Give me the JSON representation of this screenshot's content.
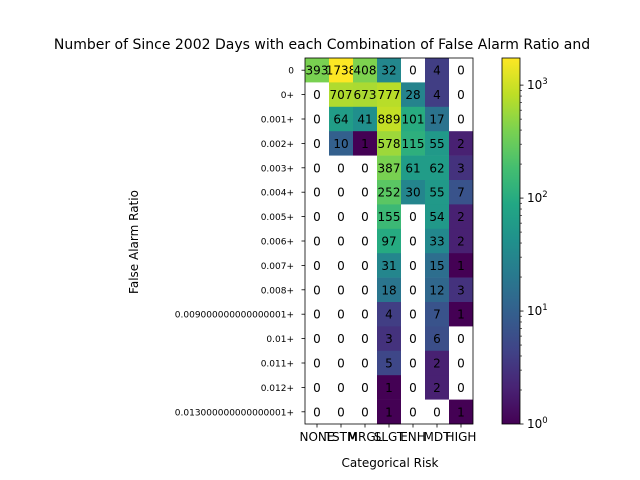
{
  "chart_data": {
    "type": "heatmap",
    "title": "Number of Since 2002 Days with each Combination of False Alarm Ratio and",
    "xlabel": "Categorical Risk",
    "ylabel": "False Alarm Ratio",
    "x_categories": [
      "NONE",
      "TSTM",
      "MRGL",
      "SLGT",
      "ENH",
      "MDT",
      "HIGH"
    ],
    "y_categories": [
      "0",
      "0+",
      "0.001+",
      "0.002+",
      "0.003+",
      "0.004+",
      "0.005+",
      "0.006+",
      "0.007+",
      "0.008+",
      "0.009000000000000001+",
      "0.01+",
      "0.011+",
      "0.012+",
      "0.013000000000000001+"
    ],
    "values": [
      [
        393,
        1738,
        408,
        32,
        0,
        4,
        0
      ],
      [
        0,
        707,
        673,
        777,
        28,
        4,
        0
      ],
      [
        0,
        64,
        41,
        889,
        101,
        17,
        0
      ],
      [
        0,
        10,
        1,
        578,
        115,
        55,
        2
      ],
      [
        0,
        0,
        0,
        387,
        61,
        62,
        3
      ],
      [
        0,
        0,
        0,
        252,
        30,
        55,
        7
      ],
      [
        0,
        0,
        0,
        155,
        0,
        54,
        2
      ],
      [
        0,
        0,
        0,
        97,
        0,
        33,
        2
      ],
      [
        0,
        0,
        0,
        31,
        0,
        15,
        1
      ],
      [
        0,
        0,
        0,
        18,
        0,
        12,
        3
      ],
      [
        0,
        0,
        0,
        4,
        0,
        7,
        1
      ],
      [
        0,
        0,
        0,
        3,
        0,
        6,
        0
      ],
      [
        0,
        0,
        0,
        5,
        0,
        2,
        0
      ],
      [
        0,
        0,
        0,
        1,
        0,
        2,
        0
      ],
      [
        0,
        0,
        0,
        1,
        0,
        0,
        1
      ]
    ],
    "colorscale": "viridis",
    "color_scale_type": "log",
    "colorbar_range": [
      1,
      1738
    ],
    "colorbar_ticks": [
      {
        "value": 1,
        "base": "10",
        "exp": "0"
      },
      {
        "value": 10,
        "base": "10",
        "exp": "1"
      },
      {
        "value": 100,
        "base": "10",
        "exp": "2"
      },
      {
        "value": 1000,
        "base": "10",
        "exp": "3"
      }
    ],
    "zero_color": "#ffffff"
  }
}
